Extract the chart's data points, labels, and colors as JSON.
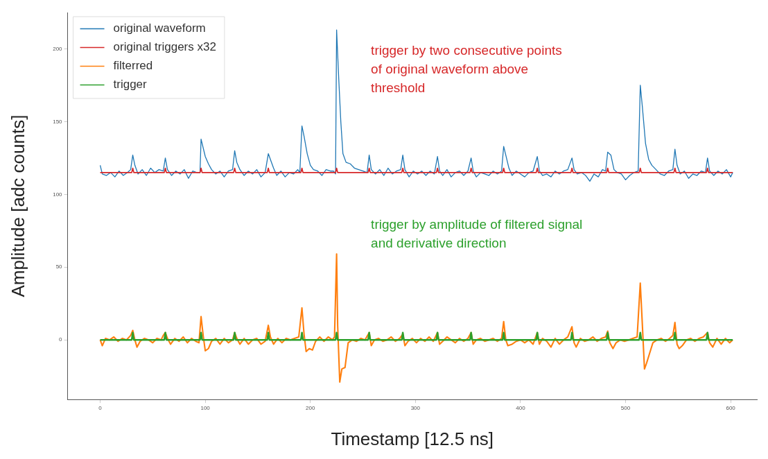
{
  "chart_data": {
    "type": "line",
    "xlabel": "Timestamp [12.5 ns]",
    "ylabel": "Amplitude [adc counts]",
    "xlim": [
      -31,
      625
    ],
    "xticks": [
      0,
      100,
      200,
      300,
      400,
      500,
      600
    ],
    "ylim": [
      -41,
      225
    ],
    "yticks": [
      0,
      50,
      100,
      150,
      200
    ],
    "grid": false,
    "legend": "top left",
    "marker": "none",
    "line_style": "solid",
    "annotations": [
      "trigger by two consecutive points\nof original waveform above\nthreshold",
      "trigger by amplitude of filtered signal\nand derivative direction"
    ],
    "series": [
      {
        "name": "original waveform",
        "color": "#1f77b4",
        "x": [
          0,
          2,
          6,
          10,
          14,
          18,
          22,
          26,
          29,
          31,
          33,
          36,
          40,
          44,
          48,
          52,
          56,
          60,
          62,
          64,
          68,
          72,
          76,
          80,
          84,
          88,
          92,
          95,
          96,
          98,
          100,
          103,
          106,
          110,
          114,
          118,
          122,
          126,
          128,
          130,
          133,
          137,
          141,
          145,
          149,
          153,
          157,
          160,
          162,
          165,
          168,
          172,
          176,
          180,
          184,
          188,
          190,
          192,
          194,
          197,
          200,
          203,
          207,
          211,
          215,
          219,
          222,
          224,
          225,
          227,
          229,
          231,
          234,
          238,
          242,
          246,
          250,
          254,
          256,
          258,
          262,
          266,
          270,
          274,
          278,
          282,
          286,
          288,
          290,
          294,
          298,
          302,
          306,
          310,
          314,
          318,
          321,
          323,
          326,
          330,
          334,
          338,
          342,
          346,
          350,
          353,
          355,
          358,
          362,
          366,
          370,
          374,
          378,
          382,
          384,
          386,
          389,
          392,
          396,
          400,
          404,
          408,
          412,
          416,
          418,
          421,
          425,
          429,
          433,
          437,
          441,
          445,
          449,
          451,
          454,
          458,
          462,
          466,
          470,
          474,
          478,
          481,
          483,
          486,
          489,
          492,
          496,
          500,
          504,
          508,
          512,
          514,
          516,
          519,
          522,
          525,
          529,
          533,
          537,
          541,
          545,
          547,
          549,
          552,
          556,
          560,
          564,
          568,
          572,
          576,
          578,
          580,
          584,
          588,
          592,
          596,
          600,
          602
        ],
        "values": [
          120,
          114,
          113,
          115,
          112,
          116,
          113,
          115,
          117,
          127,
          120,
          114,
          117,
          113,
          118,
          115,
          117,
          116,
          125,
          117,
          113,
          116,
          114,
          117,
          111,
          116,
          115,
          115,
          138,
          132,
          126,
          121,
          117,
          114,
          116,
          112,
          116,
          117,
          130,
          122,
          117,
          113,
          116,
          114,
          117,
          112,
          115,
          128,
          124,
          118,
          113,
          116,
          112,
          115,
          114,
          117,
          115,
          147,
          140,
          128,
          120,
          117,
          116,
          113,
          117,
          116,
          116,
          114,
          213,
          180,
          150,
          128,
          122,
          121,
          118,
          117,
          116,
          115,
          127,
          117,
          114,
          117,
          113,
          118,
          114,
          116,
          117,
          127,
          117,
          112,
          116,
          114,
          116,
          113,
          116,
          114,
          126,
          116,
          113,
          117,
          112,
          115,
          116,
          113,
          116,
          125,
          116,
          112,
          115,
          114,
          113,
          116,
          114,
          116,
          133,
          127,
          118,
          113,
          116,
          114,
          112,
          115,
          116,
          126,
          116,
          113,
          114,
          112,
          116,
          114,
          116,
          117,
          125,
          117,
          114,
          115,
          113,
          109,
          114,
          112,
          117,
          116,
          129,
          127,
          117,
          115,
          114,
          110,
          113,
          115,
          116,
          175,
          160,
          135,
          124,
          120,
          117,
          114,
          113,
          116,
          117,
          131,
          120,
          114,
          116,
          111,
          114,
          113,
          116,
          115,
          125,
          116,
          113,
          116,
          114,
          117,
          112,
          115
        ]
      },
      {
        "name": "original triggers x32",
        "color": "#d62728",
        "x": [
          0,
          30,
          31,
          32,
          61,
          62,
          63,
          95,
          96,
          97,
          127,
          128,
          129,
          159,
          160,
          161,
          191,
          192,
          193,
          224,
          225,
          226,
          255,
          256,
          257,
          287,
          288,
          289,
          320,
          321,
          322,
          352,
          353,
          354,
          383,
          384,
          385,
          415,
          416,
          417,
          448,
          449,
          450,
          482,
          483,
          484,
          513,
          514,
          515,
          546,
          547,
          548,
          577,
          578,
          579,
          602
        ],
        "values": [
          115,
          115,
          118,
          115,
          115,
          118,
          115,
          115,
          118,
          115,
          115,
          118,
          115,
          115,
          118,
          115,
          115,
          118,
          115,
          115,
          118,
          115,
          115,
          118,
          115,
          115,
          118,
          115,
          115,
          118,
          115,
          115,
          118,
          115,
          115,
          118,
          115,
          115,
          118,
          115,
          115,
          118,
          115,
          115,
          118,
          115,
          115,
          118,
          115,
          115,
          118,
          115,
          115,
          118,
          115,
          115
        ]
      },
      {
        "name": "filterred",
        "color": "#ff7f0e",
        "x": [
          0,
          2,
          5,
          9,
          13,
          17,
          21,
          25,
          29,
          31,
          33,
          35,
          38,
          42,
          46,
          50,
          54,
          58,
          60,
          62,
          64,
          67,
          71,
          75,
          79,
          83,
          87,
          91,
          94,
          96,
          98,
          100,
          103,
          106,
          110,
          114,
          118,
          122,
          126,
          128,
          130,
          133,
          137,
          141,
          145,
          149,
          153,
          157,
          160,
          162,
          165,
          169,
          173,
          177,
          181,
          185,
          189,
          192,
          194,
          196,
          199,
          202,
          205,
          209,
          213,
          217,
          221,
          223,
          225,
          226,
          228,
          230,
          233,
          236,
          240,
          244,
          248,
          252,
          256,
          258,
          261,
          265,
          269,
          273,
          277,
          281,
          285,
          288,
          290,
          293,
          297,
          301,
          305,
          309,
          313,
          317,
          321,
          323,
          326,
          330,
          334,
          338,
          342,
          346,
          350,
          353,
          355,
          358,
          362,
          366,
          370,
          374,
          378,
          382,
          384,
          386,
          388,
          392,
          396,
          400,
          404,
          408,
          412,
          416,
          418,
          421,
          425,
          429,
          433,
          437,
          441,
          445,
          449,
          451,
          453,
          457,
          461,
          465,
          469,
          473,
          477,
          481,
          483,
          485,
          488,
          491,
          495,
          499,
          503,
          507,
          511,
          514,
          516,
          518,
          520,
          523,
          526,
          530,
          534,
          538,
          542,
          545,
          547,
          549,
          551,
          554,
          558,
          562,
          566,
          570,
          574,
          578,
          580,
          583,
          587,
          591,
          595,
          599,
          602
        ],
        "values": [
          0,
          -4,
          1,
          0,
          2,
          -1,
          1,
          0,
          3,
          6.5,
          0,
          -5,
          -1,
          1,
          0,
          -2,
          1,
          0,
          3,
          5,
          1,
          -3,
          1,
          -1,
          2,
          -2,
          1,
          -1,
          -2,
          16,
          3,
          -7.5,
          -6,
          -1,
          1,
          -3,
          1,
          -2,
          0,
          5,
          1,
          -3,
          1,
          -3,
          0,
          1,
          -3,
          -1,
          10,
          2,
          -3,
          1,
          -2,
          1,
          0,
          1,
          2,
          22,
          4,
          -8,
          -6,
          -7,
          -1,
          2,
          -1,
          2,
          0,
          2,
          59,
          10,
          -29,
          -20,
          -19,
          -2,
          0,
          -1,
          1,
          0,
          5,
          -4,
          0,
          1,
          -1,
          0,
          2,
          -1,
          1,
          4,
          -4,
          -1,
          1,
          -2,
          1,
          -1,
          2,
          -1,
          5,
          -3,
          -1,
          2,
          0,
          -2,
          1,
          -1,
          1,
          5,
          -3,
          0,
          1,
          -1,
          0,
          1,
          -1,
          1,
          12.6,
          0,
          -4,
          -3,
          -1,
          0,
          -2,
          0,
          -3,
          5,
          -3,
          1,
          -1,
          -5,
          1,
          -3,
          0,
          2,
          9,
          -2,
          -5,
          1,
          -1,
          0,
          2,
          -1,
          1,
          2,
          6,
          -2,
          -6,
          -2,
          0,
          -1,
          0,
          1,
          2,
          39,
          10,
          -20,
          -16,
          -9,
          -2,
          0,
          1,
          -1,
          1,
          3,
          12,
          -3,
          -6,
          -4,
          0,
          1,
          -1,
          1,
          2,
          5,
          -2,
          -5,
          1,
          -3,
          1,
          -2,
          0
        ]
      },
      {
        "name": "trigger",
        "color": "#2ca02c",
        "x": [
          0,
          30,
          31,
          32,
          61,
          62,
          63,
          95,
          96,
          97,
          127,
          128,
          129,
          159,
          160,
          161,
          191,
          192,
          193,
          224,
          225,
          226,
          255,
          256,
          257,
          287,
          288,
          289,
          320,
          321,
          322,
          352,
          353,
          354,
          383,
          384,
          385,
          415,
          416,
          417,
          448,
          449,
          450,
          482,
          483,
          484,
          513,
          514,
          515,
          546,
          547,
          548,
          577,
          578,
          579,
          602
        ],
        "values": [
          0,
          0,
          5,
          0,
          0,
          5,
          0,
          0,
          5,
          0,
          0,
          5,
          0,
          0,
          5,
          0,
          0,
          5,
          0,
          0,
          5,
          0,
          0,
          5,
          0,
          0,
          5,
          0,
          0,
          5,
          0,
          0,
          5,
          0,
          0,
          5,
          0,
          0,
          5,
          0,
          0,
          5,
          0,
          0,
          5,
          0,
          0,
          5,
          0,
          0,
          5,
          0,
          0,
          5,
          0,
          0
        ]
      }
    ]
  }
}
